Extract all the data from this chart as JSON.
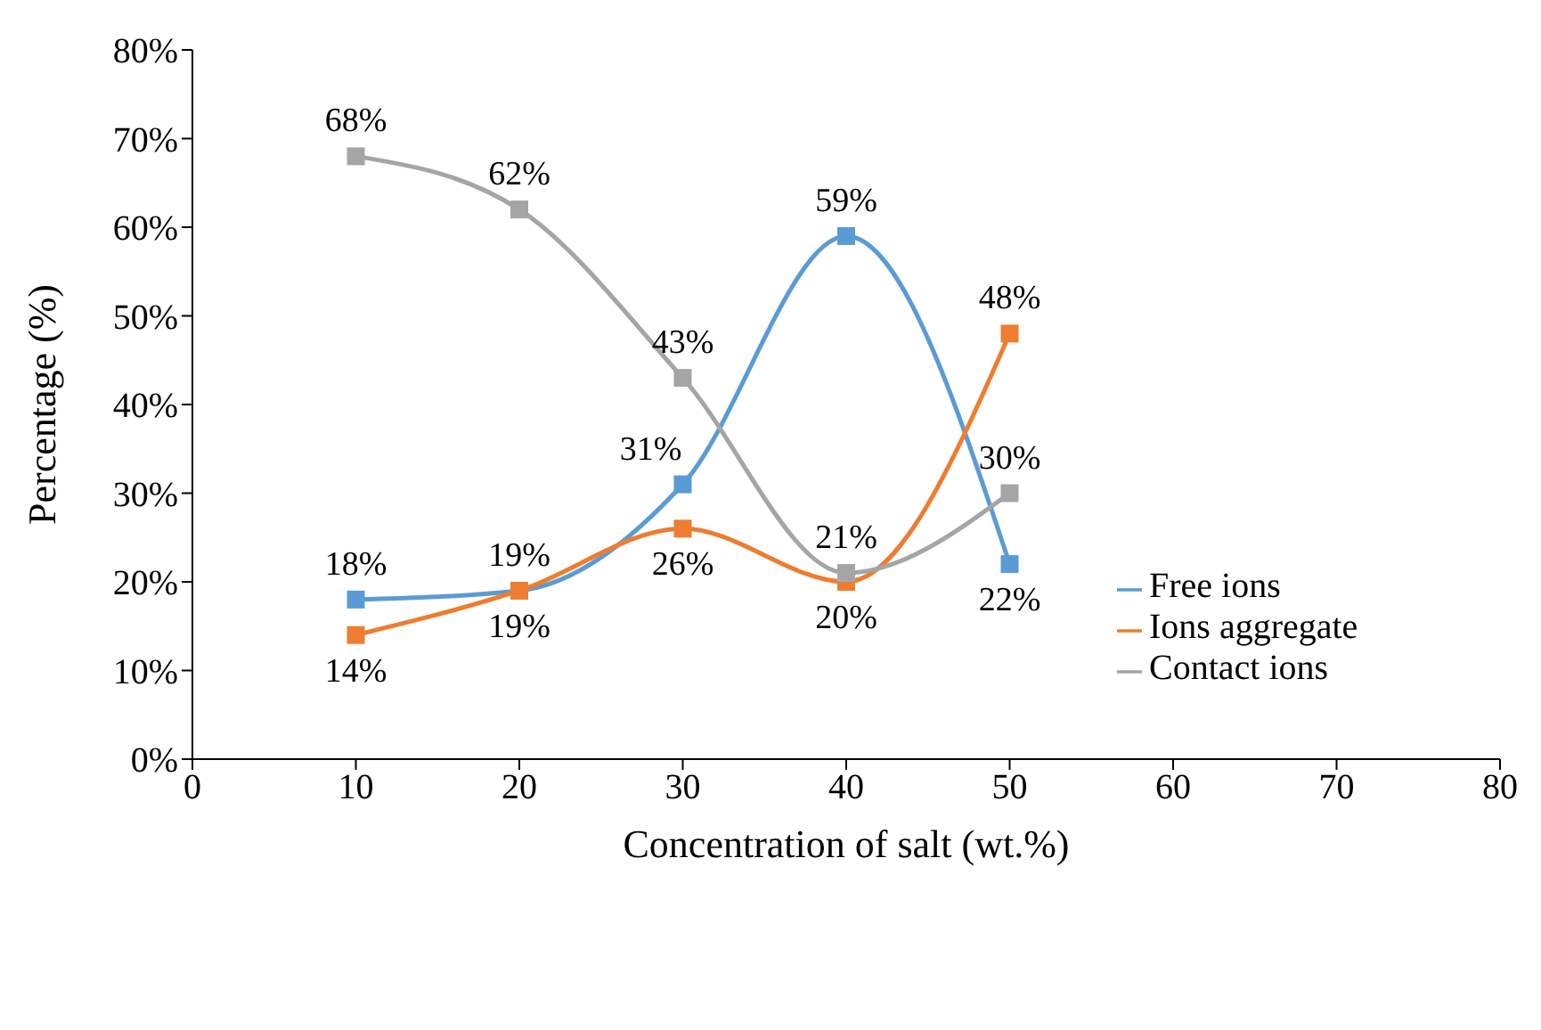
{
  "chart_data": {
    "type": "line",
    "xlabel": "Concentration of salt (wt.%)",
    "ylabel": "Percentage (%)",
    "x": [
      10,
      20,
      30,
      40,
      50
    ],
    "series": [
      {
        "name": "Free ions",
        "color": "#5b9bd5",
        "values": [
          18,
          19,
          31,
          59,
          22
        ],
        "value_labels": [
          "18%",
          "19%",
          "31%",
          "59%",
          "22%"
        ]
      },
      {
        "name": "Ions aggregate",
        "color": "#ed7d31",
        "values": [
          14,
          19,
          26,
          20,
          48
        ],
        "value_labels": [
          "14%",
          "19%",
          "26%",
          "20%",
          "48%"
        ]
      },
      {
        "name": "Contact ions",
        "color": "#a5a5a5",
        "values": [
          68,
          62,
          43,
          21,
          30
        ],
        "value_labels": [
          "68%",
          "62%",
          "43%",
          "21%",
          "30%"
        ]
      }
    ],
    "xlim": [
      0,
      80
    ],
    "xticks": [
      0,
      10,
      20,
      30,
      40,
      50,
      60,
      70,
      80
    ],
    "ylim": [
      0,
      80
    ],
    "yticks": [
      {
        "value": 0,
        "label": "0%"
      },
      {
        "value": 10,
        "label": "10%"
      },
      {
        "value": 20,
        "label": "20%"
      },
      {
        "value": 30,
        "label": "30%"
      },
      {
        "value": 40,
        "label": "40%"
      },
      {
        "value": 50,
        "label": "50%"
      },
      {
        "value": 60,
        "label": "60%"
      },
      {
        "value": 70,
        "label": "70%"
      },
      {
        "value": 80,
        "label": "80%"
      }
    ],
    "grid": false,
    "legend": "right",
    "marker": "square",
    "line_style": "solid"
  }
}
